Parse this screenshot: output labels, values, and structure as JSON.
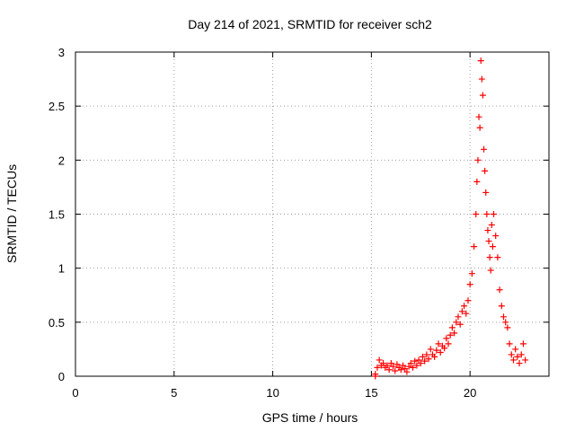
{
  "chart_data": {
    "type": "scatter",
    "title": "Day 214 of 2021, SRMTID for receiver sch2",
    "xlabel": "GPS time / hours",
    "ylabel": "SRMTID / TECUs",
    "xlim": [
      0,
      24
    ],
    "ylim": [
      0,
      3
    ],
    "x_ticks": [
      0,
      5,
      10,
      15,
      20
    ],
    "x_tick_labels": [
      "0",
      "5",
      "10",
      "15",
      "20"
    ],
    "y_ticks": [
      0,
      0.5,
      1,
      1.5,
      2,
      2.5,
      3
    ],
    "y_tick_labels": [
      "0",
      "0.5",
      "1",
      "1.5",
      "2",
      "2.5",
      "3"
    ],
    "grid": true,
    "marker": "+",
    "colors": {
      "series": "#ff0000",
      "grid": "#a0a0a0",
      "axes": "#000000"
    },
    "series": [
      {
        "name": "sch2",
        "x": [
          15.2,
          15.2,
          15.3,
          15.4,
          15.5,
          15.6,
          15.7,
          15.8,
          15.9,
          16.0,
          16.1,
          16.2,
          16.3,
          16.4,
          16.5,
          16.6,
          16.7,
          16.8,
          16.9,
          17.0,
          17.1,
          17.2,
          17.3,
          17.4,
          17.5,
          17.6,
          17.7,
          17.8,
          17.9,
          18.0,
          18.1,
          18.2,
          18.3,
          18.4,
          18.5,
          18.6,
          18.7,
          18.8,
          18.9,
          19.0,
          19.1,
          19.2,
          19.3,
          19.4,
          19.5,
          19.6,
          19.7,
          19.8,
          19.9,
          20.0,
          20.1,
          20.2,
          20.3,
          20.35,
          20.4,
          20.45,
          20.5,
          20.55,
          20.6,
          20.65,
          20.7,
          20.75,
          20.8,
          20.85,
          20.9,
          20.95,
          21.0,
          21.05,
          21.1,
          21.15,
          21.2,
          21.3,
          21.4,
          21.5,
          21.6,
          21.7,
          21.8,
          21.9,
          22.0,
          22.1,
          22.2,
          22.3,
          22.4,
          22.5,
          22.6,
          22.7,
          22.8
        ],
        "y": [
          0.0,
          0.02,
          0.08,
          0.15,
          0.1,
          0.12,
          0.08,
          0.1,
          0.06,
          0.12,
          0.09,
          0.05,
          0.11,
          0.08,
          0.06,
          0.1,
          0.07,
          0.04,
          0.09,
          0.12,
          0.08,
          0.14,
          0.1,
          0.15,
          0.12,
          0.18,
          0.14,
          0.2,
          0.16,
          0.25,
          0.2,
          0.18,
          0.24,
          0.3,
          0.22,
          0.28,
          0.26,
          0.35,
          0.3,
          0.38,
          0.45,
          0.4,
          0.5,
          0.55,
          0.48,
          0.6,
          0.65,
          0.58,
          0.7,
          0.85,
          0.95,
          1.2,
          1.5,
          1.8,
          2.0,
          2.4,
          2.3,
          2.92,
          2.75,
          2.6,
          2.1,
          1.9,
          1.7,
          1.5,
          1.35,
          1.25,
          1.1,
          0.98,
          1.4,
          1.2,
          1.5,
          1.3,
          1.1,
          0.8,
          0.65,
          0.55,
          0.5,
          0.45,
          0.3,
          0.2,
          0.15,
          0.25,
          0.18,
          0.12,
          0.2,
          0.3,
          0.15
        ]
      }
    ]
  }
}
